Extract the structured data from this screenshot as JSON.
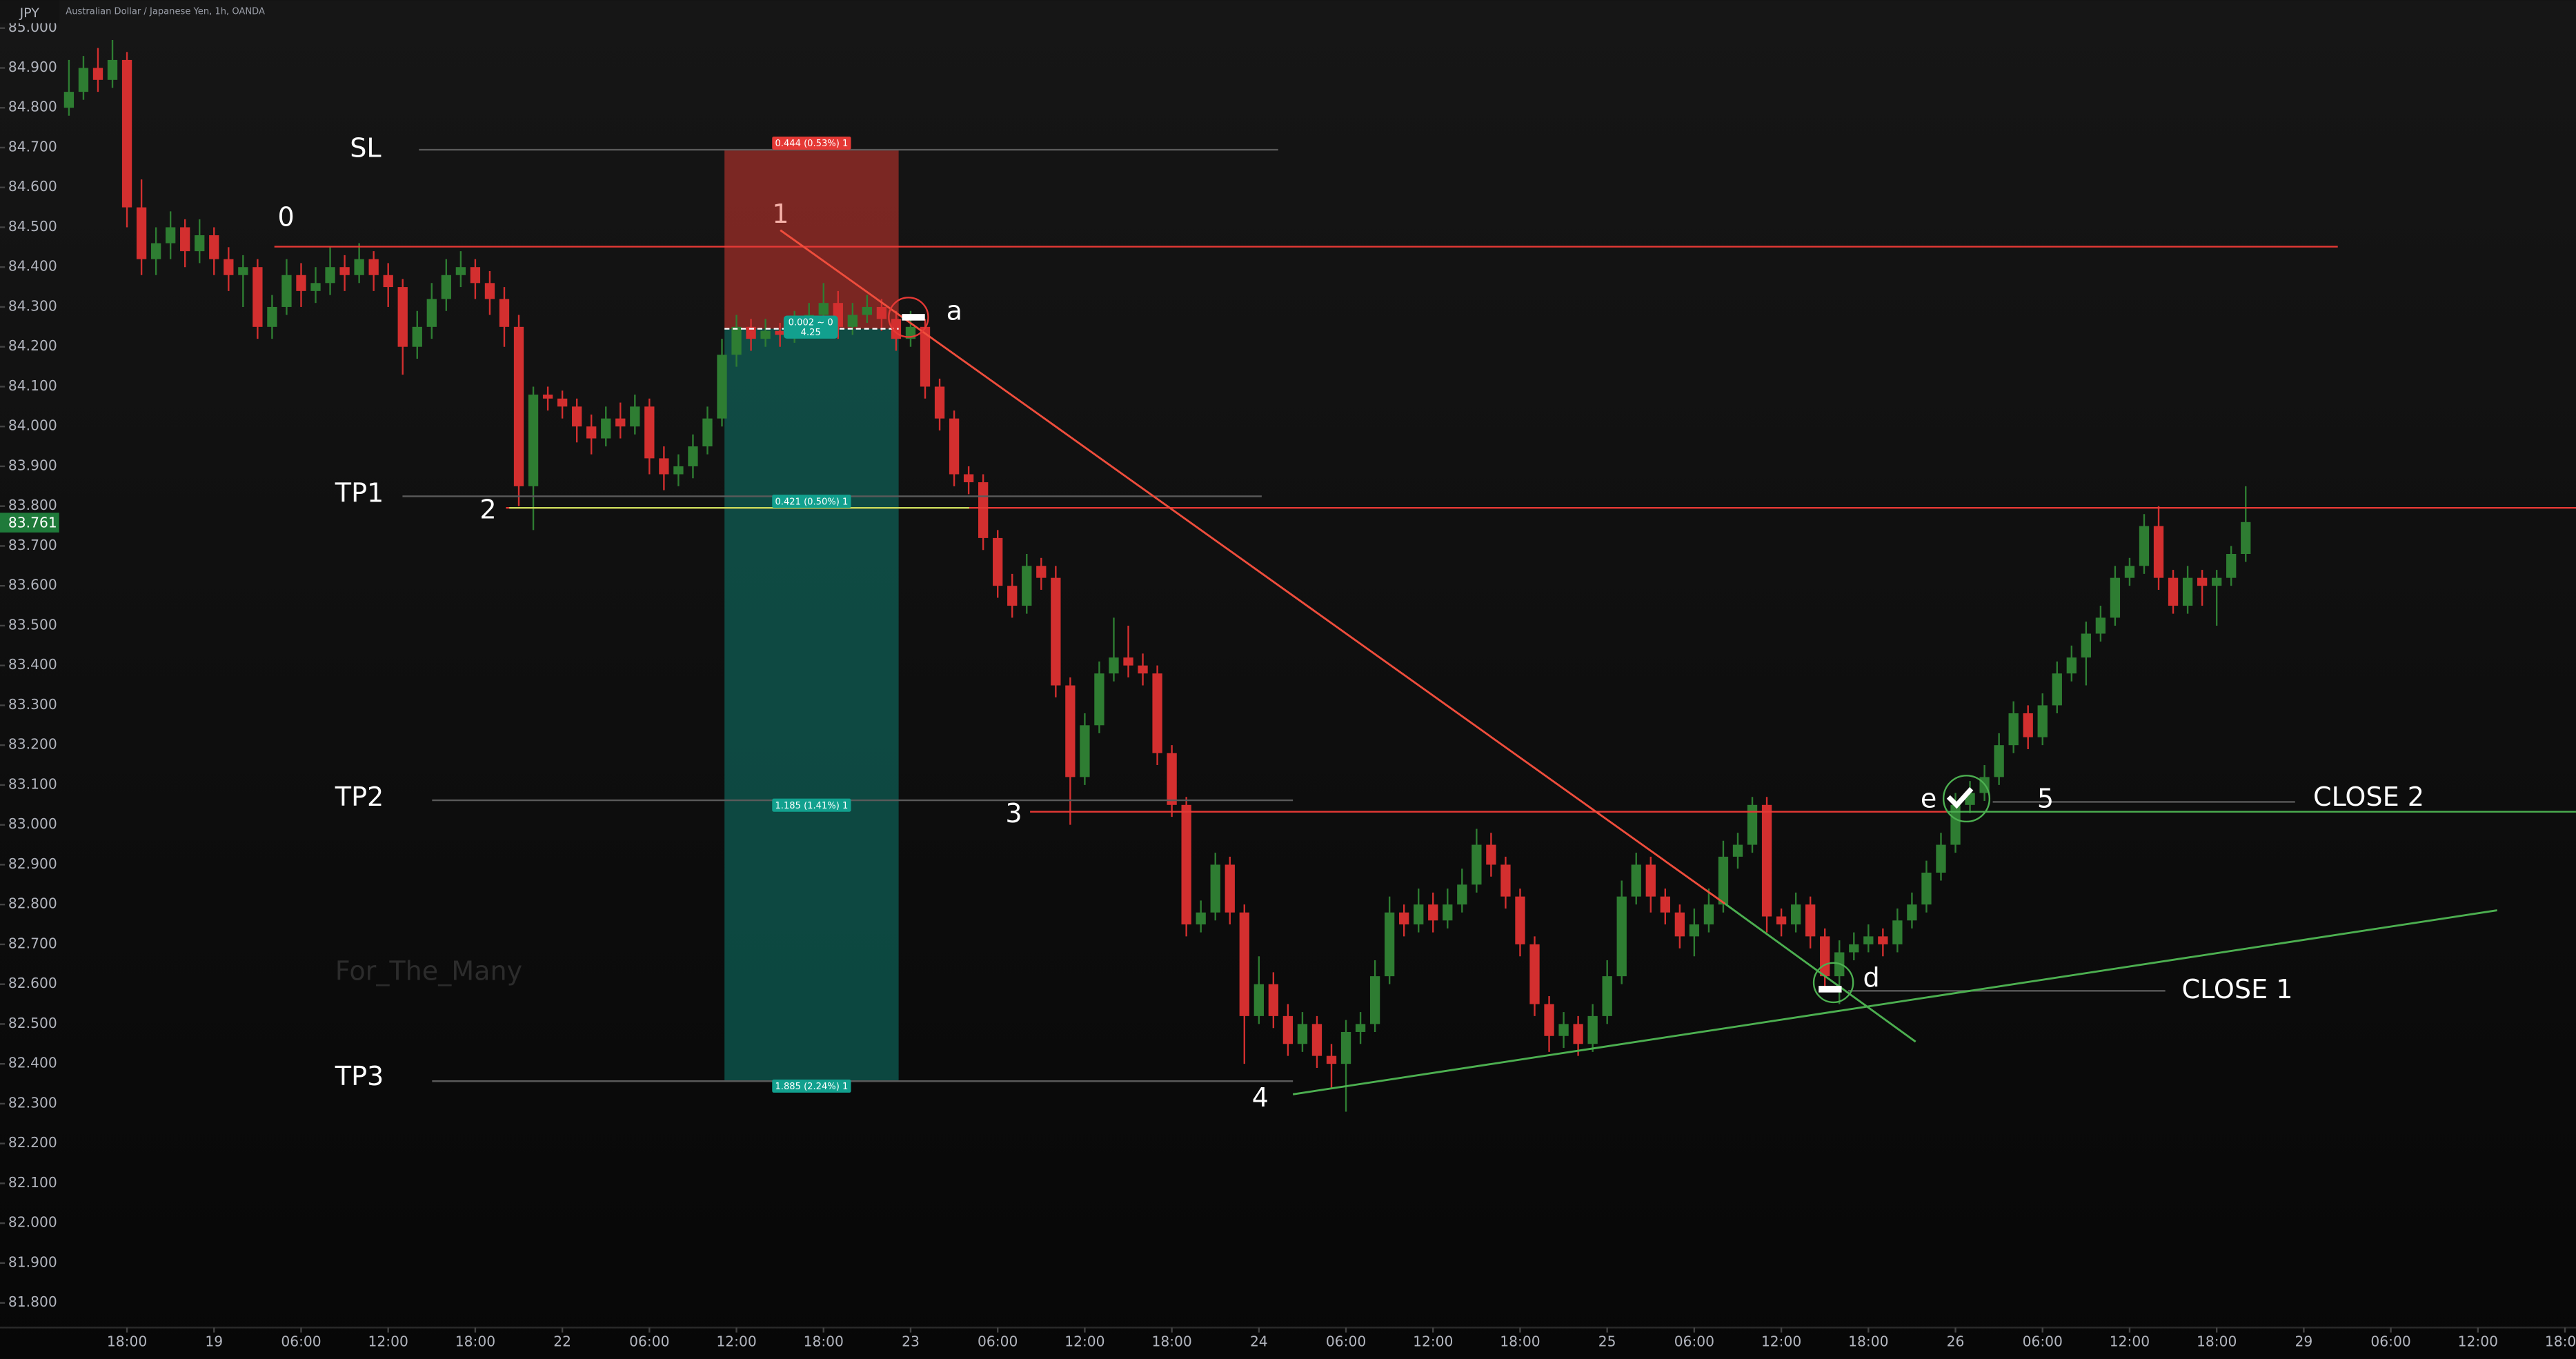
{
  "chart_data": {
    "type": "candlestick",
    "header": {
      "symbol": "JPY",
      "title": "Australian Dollar / Japanese Yen, 1h, OANDA"
    },
    "watermark": "For_The_Many",
    "last_price_label": "83.761",
    "up_color": "#2e7d32",
    "down_color": "#d32f2f",
    "grid": false,
    "xlim": [
      -4.75,
      172.76
    ],
    "ylim": [
      81.738,
      85.07
    ],
    "xticks": [
      {
        "value": 4,
        "label": "18:00"
      },
      {
        "value": 10,
        "label": "19"
      },
      {
        "value": 16,
        "label": "06:00"
      },
      {
        "value": 22,
        "label": "12:00"
      },
      {
        "value": 28,
        "label": "18:00"
      },
      {
        "value": 34,
        "label": "22"
      },
      {
        "value": 40,
        "label": "06:00"
      },
      {
        "value": 46,
        "label": "12:00"
      },
      {
        "value": 52,
        "label": "18:00"
      },
      {
        "value": 58,
        "label": "23"
      },
      {
        "value": 64,
        "label": "06:00"
      },
      {
        "value": 70,
        "label": "12:00"
      },
      {
        "value": 76,
        "label": "18:00"
      },
      {
        "value": 82,
        "label": "24"
      },
      {
        "value": 88,
        "label": "06:00"
      },
      {
        "value": 94,
        "label": "12:00"
      },
      {
        "value": 100,
        "label": "18:00"
      },
      {
        "value": 106,
        "label": "25"
      },
      {
        "value": 112,
        "label": "06:00"
      },
      {
        "value": 118,
        "label": "12:00"
      },
      {
        "value": 124,
        "label": "18:00"
      },
      {
        "value": 130,
        "label": "26"
      },
      {
        "value": 136,
        "label": "06:00"
      },
      {
        "value": 142,
        "label": "12:00"
      },
      {
        "value": 148,
        "label": "18:00"
      },
      {
        "value": 154,
        "label": "29"
      },
      {
        "value": 160,
        "label": "06:00"
      },
      {
        "value": 166,
        "label": "12:00"
      },
      {
        "value": 172,
        "label": "18:00"
      }
    ],
    "yticks": [
      {
        "value": 85.0,
        "label": "85.000"
      },
      {
        "value": 84.9,
        "label": "84.900"
      },
      {
        "value": 84.8,
        "label": "84.800"
      },
      {
        "value": 84.7,
        "label": "84.700"
      },
      {
        "value": 84.6,
        "label": "84.600"
      },
      {
        "value": 84.5,
        "label": "84.500"
      },
      {
        "value": 84.4,
        "label": "84.400"
      },
      {
        "value": 84.3,
        "label": "84.300"
      },
      {
        "value": 84.2,
        "label": "84.200"
      },
      {
        "value": 84.1,
        "label": "84.100"
      },
      {
        "value": 84.0,
        "label": "84.000"
      },
      {
        "value": 83.9,
        "label": "83.900"
      },
      {
        "value": 83.8,
        "label": "83.800"
      },
      {
        "value": 83.7,
        "label": "83.700"
      },
      {
        "value": 83.6,
        "label": "83.600"
      },
      {
        "value": 83.5,
        "label": "83.500"
      },
      {
        "value": 83.4,
        "label": "83.400"
      },
      {
        "value": 83.3,
        "label": "83.300"
      },
      {
        "value": 83.2,
        "label": "83.200"
      },
      {
        "value": 83.1,
        "label": "83.100"
      },
      {
        "value": 83.0,
        "label": "83.000"
      },
      {
        "value": 82.9,
        "label": "82.900"
      },
      {
        "value": 82.8,
        "label": "82.800"
      },
      {
        "value": 82.7,
        "label": "82.700"
      },
      {
        "value": 82.6,
        "label": "82.600"
      },
      {
        "value": 82.5,
        "label": "82.500"
      },
      {
        "value": 82.4,
        "label": "82.400"
      },
      {
        "value": 82.3,
        "label": "82.300"
      },
      {
        "value": 82.2,
        "label": "82.200"
      },
      {
        "value": 82.1,
        "label": "82.100"
      },
      {
        "value": 82.0,
        "label": "82.000"
      },
      {
        "value": 81.9,
        "label": "81.900"
      },
      {
        "value": 81.8,
        "label": "81.800"
      }
    ],
    "position_labels": [
      "0.444 (0.53%) 1",
      "0.421 (0.50%) 1",
      "1.185 (1.41%) 1",
      "1.885 (2.24%) 1",
      "0.002 ~ 0",
      "4.25"
    ],
    "drawing_labels": [
      "SL",
      "TP1",
      "TP2",
      "TP3",
      "0",
      "1",
      "2",
      "3",
      "4",
      "5",
      "a",
      "d",
      "e",
      "CLOSE 1",
      "CLOSE 2"
    ],
    "ohlc": [
      [
        84.8,
        84.92,
        84.78,
        84.84
      ],
      [
        84.84,
        84.93,
        84.82,
        84.9
      ],
      [
        84.9,
        84.95,
        84.84,
        84.87
      ],
      [
        84.87,
        84.97,
        84.85,
        84.92
      ],
      [
        84.92,
        84.94,
        84.5,
        84.55
      ],
      [
        84.55,
        84.62,
        84.38,
        84.42
      ],
      [
        84.42,
        84.5,
        84.38,
        84.46
      ],
      [
        84.46,
        84.54,
        84.42,
        84.5
      ],
      [
        84.5,
        84.52,
        84.4,
        84.44
      ],
      [
        84.44,
        84.52,
        84.41,
        84.48
      ],
      [
        84.48,
        84.5,
        84.38,
        84.42
      ],
      [
        84.42,
        84.45,
        84.34,
        84.38
      ],
      [
        84.38,
        84.43,
        84.3,
        84.4
      ],
      [
        84.4,
        84.42,
        84.22,
        84.25
      ],
      [
        84.25,
        84.33,
        84.22,
        84.3
      ],
      [
        84.3,
        84.42,
        84.28,
        84.38
      ],
      [
        84.38,
        84.41,
        84.3,
        84.34
      ],
      [
        84.34,
        84.4,
        84.31,
        84.36
      ],
      [
        84.36,
        84.45,
        84.33,
        84.4
      ],
      [
        84.4,
        84.43,
        84.34,
        84.38
      ],
      [
        84.38,
        84.46,
        84.36,
        84.42
      ],
      [
        84.42,
        84.44,
        84.34,
        84.38
      ],
      [
        84.38,
        84.41,
        84.3,
        84.35
      ],
      [
        84.35,
        84.37,
        84.13,
        84.2
      ],
      [
        84.2,
        84.29,
        84.17,
        84.25
      ],
      [
        84.25,
        84.36,
        84.22,
        84.32
      ],
      [
        84.32,
        84.42,
        84.29,
        84.38
      ],
      [
        84.38,
        84.44,
        84.35,
        84.4
      ],
      [
        84.4,
        84.42,
        84.32,
        84.36
      ],
      [
        84.36,
        84.39,
        84.28,
        84.32
      ],
      [
        84.32,
        84.35,
        84.2,
        84.25
      ],
      [
        84.25,
        84.28,
        83.8,
        83.85
      ],
      [
        83.85,
        84.1,
        83.74,
        84.08
      ],
      [
        84.08,
        84.1,
        84.04,
        84.07
      ],
      [
        84.07,
        84.09,
        84.02,
        84.05
      ],
      [
        84.05,
        84.07,
        83.96,
        84.0
      ],
      [
        84.0,
        84.03,
        83.93,
        83.97
      ],
      [
        83.97,
        84.05,
        83.95,
        84.02
      ],
      [
        84.02,
        84.06,
        83.97,
        84.0
      ],
      [
        84.0,
        84.08,
        83.98,
        84.05
      ],
      [
        84.05,
        84.07,
        83.88,
        83.92
      ],
      [
        83.92,
        83.95,
        83.84,
        83.88
      ],
      [
        83.88,
        83.93,
        83.85,
        83.9
      ],
      [
        83.9,
        83.98,
        83.87,
        83.95
      ],
      [
        83.95,
        84.05,
        83.93,
        84.02
      ],
      [
        84.02,
        84.22,
        84.0,
        84.18
      ],
      [
        84.18,
        84.28,
        84.15,
        84.25
      ],
      [
        84.25,
        84.27,
        84.19,
        84.22
      ],
      [
        84.22,
        84.27,
        84.2,
        84.24
      ],
      [
        84.24,
        84.26,
        84.2,
        84.23
      ],
      [
        84.23,
        84.29,
        84.21,
        84.26
      ],
      [
        84.26,
        84.31,
        84.24,
        84.28
      ],
      [
        84.28,
        84.36,
        84.26,
        84.31
      ],
      [
        84.31,
        84.34,
        84.22,
        84.25
      ],
      [
        84.25,
        84.31,
        84.23,
        84.28
      ],
      [
        84.28,
        84.33,
        84.26,
        84.3
      ],
      [
        84.3,
        84.32,
        84.24,
        84.27
      ],
      [
        84.27,
        84.29,
        84.19,
        84.22
      ],
      [
        84.22,
        84.29,
        84.2,
        84.25
      ],
      [
        84.25,
        84.27,
        84.07,
        84.1
      ],
      [
        84.1,
        84.12,
        83.99,
        84.02
      ],
      [
        84.02,
        84.04,
        83.85,
        83.88
      ],
      [
        83.88,
        83.9,
        83.83,
        83.86
      ],
      [
        83.86,
        83.88,
        83.69,
        83.72
      ],
      [
        83.72,
        83.74,
        83.57,
        83.6
      ],
      [
        83.6,
        83.63,
        83.52,
        83.55
      ],
      [
        83.55,
        83.68,
        83.53,
        83.65
      ],
      [
        83.65,
        83.67,
        83.59,
        83.62
      ],
      [
        83.62,
        83.65,
        83.32,
        83.35
      ],
      [
        83.35,
        83.37,
        83.0,
        83.12
      ],
      [
        83.12,
        83.28,
        83.1,
        83.25
      ],
      [
        83.25,
        83.41,
        83.23,
        83.38
      ],
      [
        83.38,
        83.52,
        83.36,
        83.42
      ],
      [
        83.42,
        83.5,
        83.37,
        83.4
      ],
      [
        83.4,
        83.43,
        83.35,
        83.38
      ],
      [
        83.38,
        83.4,
        83.15,
        83.18
      ],
      [
        83.18,
        83.2,
        83.02,
        83.05
      ],
      [
        83.05,
        83.07,
        82.72,
        82.75
      ],
      [
        82.75,
        82.81,
        82.73,
        82.78
      ],
      [
        82.78,
        82.93,
        82.76,
        82.9
      ],
      [
        82.9,
        82.92,
        82.75,
        82.78
      ],
      [
        82.78,
        82.8,
        82.4,
        82.52
      ],
      [
        82.52,
        82.67,
        82.5,
        82.6
      ],
      [
        82.6,
        82.63,
        82.49,
        82.52
      ],
      [
        82.52,
        82.55,
        82.42,
        82.45
      ],
      [
        82.45,
        82.53,
        82.43,
        82.5
      ],
      [
        82.5,
        82.52,
        82.39,
        82.42
      ],
      [
        82.42,
        82.45,
        82.34,
        82.4
      ],
      [
        82.4,
        82.51,
        82.28,
        82.48
      ],
      [
        82.48,
        82.53,
        82.45,
        82.5
      ],
      [
        82.5,
        82.66,
        82.48,
        82.62
      ],
      [
        82.62,
        82.82,
        82.6,
        82.78
      ],
      [
        82.78,
        82.8,
        82.72,
        82.75
      ],
      [
        82.75,
        82.84,
        82.73,
        82.8
      ],
      [
        82.8,
        82.83,
        82.73,
        82.76
      ],
      [
        82.76,
        82.84,
        82.74,
        82.8
      ],
      [
        82.8,
        82.89,
        82.78,
        82.85
      ],
      [
        82.85,
        82.99,
        82.83,
        82.95
      ],
      [
        82.95,
        82.98,
        82.87,
        82.9
      ],
      [
        82.9,
        82.92,
        82.79,
        82.82
      ],
      [
        82.82,
        82.84,
        82.67,
        82.7
      ],
      [
        82.7,
        82.72,
        82.52,
        82.55
      ],
      [
        82.55,
        82.57,
        82.43,
        82.47
      ],
      [
        82.47,
        82.53,
        82.44,
        82.5
      ],
      [
        82.5,
        82.52,
        82.42,
        82.45
      ],
      [
        82.45,
        82.55,
        82.43,
        82.52
      ],
      [
        82.52,
        82.66,
        82.5,
        82.62
      ],
      [
        82.62,
        82.86,
        82.6,
        82.82
      ],
      [
        82.82,
        82.93,
        82.8,
        82.9
      ],
      [
        82.9,
        82.92,
        82.78,
        82.82
      ],
      [
        82.82,
        82.84,
        82.75,
        82.78
      ],
      [
        82.78,
        82.8,
        82.69,
        82.72
      ],
      [
        82.72,
        82.79,
        82.67,
        82.75
      ],
      [
        82.75,
        82.84,
        82.73,
        82.8
      ],
      [
        82.8,
        82.96,
        82.78,
        82.92
      ],
      [
        82.92,
        82.98,
        82.89,
        82.95
      ],
      [
        82.95,
        83.07,
        82.93,
        83.05
      ],
      [
        83.05,
        83.07,
        82.73,
        82.77
      ],
      [
        82.77,
        82.79,
        82.72,
        82.75
      ],
      [
        82.75,
        82.83,
        82.73,
        82.8
      ],
      [
        82.8,
        82.82,
        82.69,
        82.72
      ],
      [
        82.72,
        82.74,
        82.58,
        82.62
      ],
      [
        82.62,
        82.71,
        82.55,
        82.68
      ],
      [
        82.68,
        82.73,
        82.66,
        82.7
      ],
      [
        82.7,
        82.75,
        82.68,
        82.72
      ],
      [
        82.72,
        82.74,
        82.67,
        82.7
      ],
      [
        82.7,
        82.79,
        82.68,
        82.76
      ],
      [
        82.76,
        82.83,
        82.74,
        82.8
      ],
      [
        82.8,
        82.91,
        82.78,
        82.88
      ],
      [
        82.88,
        82.98,
        82.86,
        82.95
      ],
      [
        82.95,
        83.08,
        82.93,
        83.05
      ],
      [
        83.05,
        83.11,
        83.03,
        83.08
      ],
      [
        83.08,
        83.15,
        83.06,
        83.12
      ],
      [
        83.12,
        83.23,
        83.1,
        83.2
      ],
      [
        83.2,
        83.31,
        83.18,
        83.28
      ],
      [
        83.28,
        83.3,
        83.19,
        83.22
      ],
      [
        83.22,
        83.33,
        83.2,
        83.3
      ],
      [
        83.3,
        83.41,
        83.28,
        83.38
      ],
      [
        83.38,
        83.45,
        83.36,
        83.42
      ],
      [
        83.42,
        83.51,
        83.35,
        83.48
      ],
      [
        83.48,
        83.55,
        83.46,
        83.52
      ],
      [
        83.52,
        83.65,
        83.5,
        83.62
      ],
      [
        83.62,
        83.67,
        83.6,
        83.65
      ],
      [
        83.65,
        83.78,
        83.63,
        83.75
      ],
      [
        83.75,
        83.8,
        83.59,
        83.62
      ],
      [
        83.62,
        83.64,
        83.53,
        83.55
      ],
      [
        83.55,
        83.65,
        83.53,
        83.62
      ],
      [
        83.62,
        83.64,
        83.55,
        83.6
      ],
      [
        83.6,
        83.64,
        83.5,
        83.62
      ],
      [
        83.62,
        83.7,
        83.6,
        83.68
      ],
      [
        83.68,
        83.85,
        83.66,
        83.76
      ]
    ]
  }
}
